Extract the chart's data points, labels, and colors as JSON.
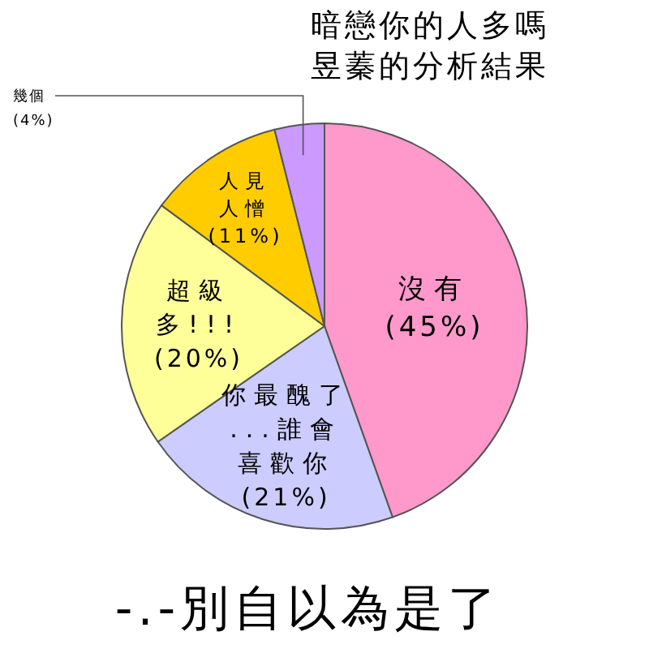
{
  "chart_data": {
    "type": "pie",
    "title": "暗戀你的人多嗎",
    "subtitle": "昱蓁的分析結果",
    "categories": [
      "沒有",
      "你最醜了...誰會喜歡你",
      "超級多!!!",
      "人見人憎",
      "幾個"
    ],
    "values": [
      45,
      21,
      20,
      11,
      4
    ],
    "colors": [
      "#ff99cc",
      "#ccccff",
      "#ffff99",
      "#ffcc00",
      "#cc99ff"
    ],
    "value_labels": [
      "(45%)",
      "(21%)",
      "(20%)",
      "(11%)",
      "(4%)"
    ],
    "annotations": [
      "-.-別自以為是了"
    ]
  }
}
